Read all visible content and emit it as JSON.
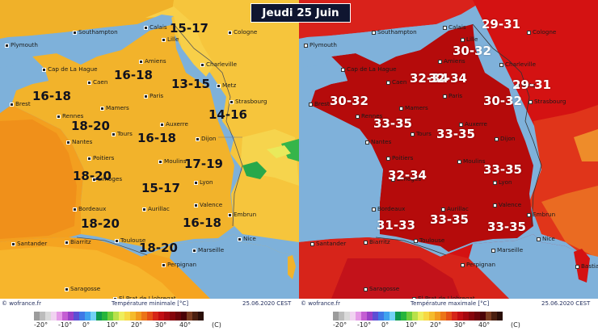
{
  "title": "Jeudi 25 Juin",
  "colors": {
    "sea": "#7eb1da",
    "sea_right": "#7fb1da",
    "left_land": "#f2b12a",
    "left_north": "#f5c43c",
    "left_hot": "#f08e17",
    "right_land": "#d41212",
    "right_dark": "#b30a0a",
    "right_east": "#e55a1e",
    "title_bg": "#0f1530"
  },
  "left": {
    "footer_brand": "© wofrance.fr",
    "footer_title": "Température minimale [°C]",
    "footer_date": "25.06.2020 CEST",
    "cities": [
      "Plymouth",
      "Southampton",
      "Calais",
      "Lille",
      "Cologne",
      "Cap de La Hague",
      "Amiens",
      "Charleville",
      "Caen",
      "Brest",
      "Paris",
      "Metz",
      "Mamers",
      "Rennes",
      "Strasbourg",
      "Auxerre",
      "Tours",
      "Nantes",
      "Dijon",
      "Poitiers",
      "Moulins",
      "Limoges",
      "Lyon",
      "Bordeaux",
      "Aurillac",
      "Valence",
      "Embrun",
      "Toulouse",
      "Marseille",
      "Santander",
      "Biarritz",
      "Nice",
      "Perpignan",
      "Saragosse",
      "El Prat de Llobregat"
    ],
    "ranges": [
      "15-17",
      "16-18",
      "13-15",
      "16-18",
      "14-16",
      "18-20",
      "16-18",
      "17-19",
      "18-20",
      "15-17",
      "18-20",
      "16-18",
      "18-20"
    ]
  },
  "right": {
    "footer_brand": "© wofrance.fr",
    "footer_title": "Température maximale [°C]",
    "footer_date": "25.06.2020 CEST",
    "cities": [
      "Plymouth",
      "Southampton",
      "Calais",
      "Lille",
      "Cologne",
      "Cap de La Hague",
      "Amiens",
      "Charleville",
      "Caen",
      "Brest",
      "Paris",
      "Metz",
      "Mamers",
      "Rennes",
      "Strasbourg",
      "Auxerre",
      "Tours",
      "Nantes",
      "Dijon",
      "Poitiers",
      "Moulins",
      "Limoges",
      "Lyon",
      "Bordeaux",
      "Aurillac",
      "Valence",
      "Embrun",
      "Toulouse",
      "Marseille",
      "Santander",
      "Biarritz",
      "Nice",
      "Perpignan",
      "Saragosse",
      "El Prat de Llobregat",
      "Bastia"
    ],
    "ranges": [
      "29-31",
      "30-32",
      "32-34",
      "29-31",
      "30-32",
      "30-32",
      "33-35",
      "33-35",
      "33-35",
      "32-34",
      "33-35",
      "31-33",
      "33-35",
      "32-34"
    ]
  },
  "legend": {
    "ticks": [
      "-20°",
      "-10°",
      "0°",
      "10°",
      "20°",
      "30°",
      "40°"
    ],
    "unit": "(C)",
    "swatches": [
      "#9c9c9c",
      "#bcbcbc",
      "#dadada",
      "#f1d3f1",
      "#e59ae8",
      "#c45ed3",
      "#9b40c7",
      "#5c4fd4",
      "#3e78e6",
      "#3fa3ef",
      "#72d2f5",
      "#0d9a4d",
      "#27b53c",
      "#6fce3b",
      "#b9e14a",
      "#eeee5c",
      "#f7d943",
      "#f5bb2c",
      "#f29a1e",
      "#ec7418",
      "#e44e17",
      "#d62518",
      "#c10d13",
      "#a5060f",
      "#86050c",
      "#6a040a",
      "#4b0307",
      "#7b3b20",
      "#4a1f10",
      "#2a0f08"
    ]
  }
}
